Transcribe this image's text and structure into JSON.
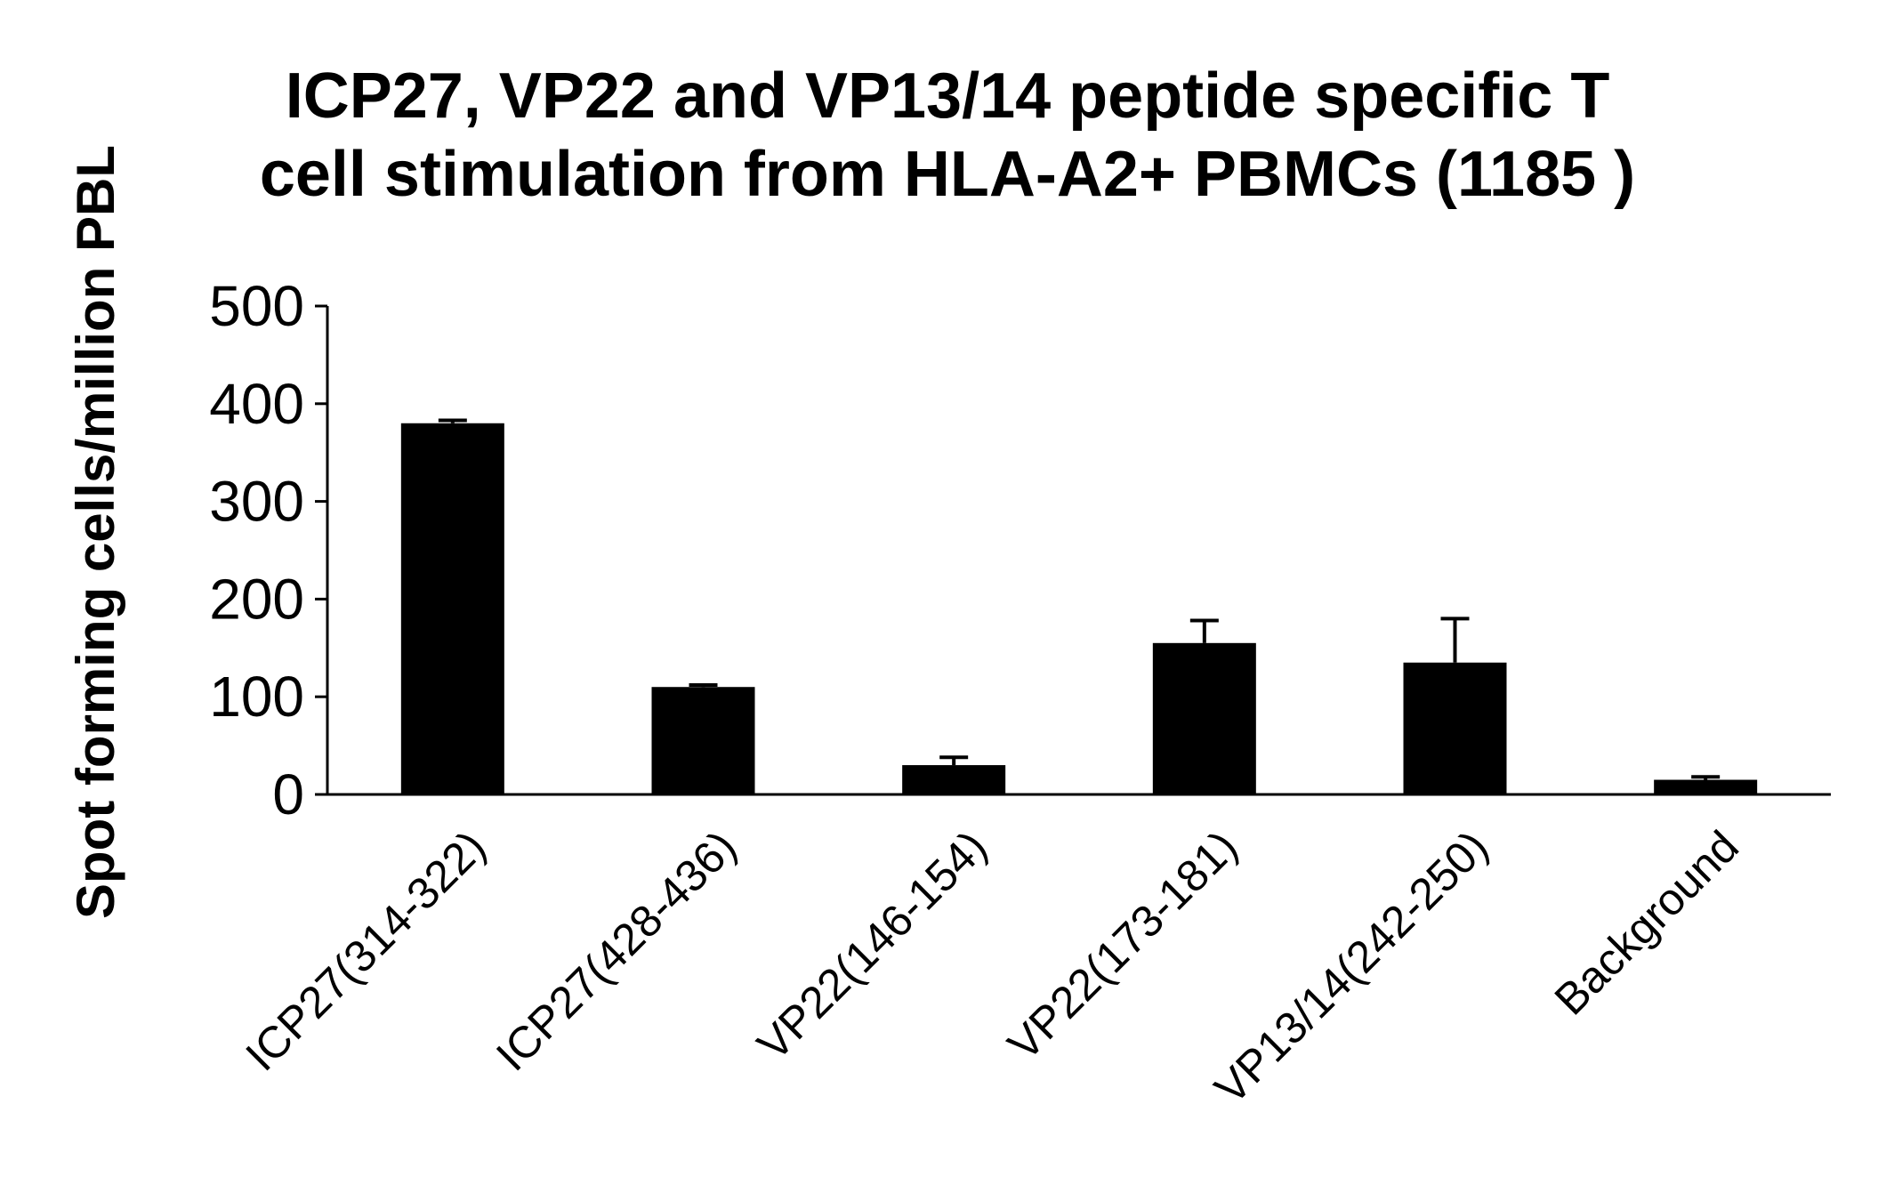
{
  "chart_data": {
    "type": "bar",
    "title": [
      "ICP27, VP22 and VP13/14 peptide specific T",
      "cell stimulation from HLA-A2+ PBMCs (1185 )"
    ],
    "xlabel": "",
    "ylabel": "Spot forming cells/million PBL",
    "ylim": [
      0,
      500
    ],
    "yticks": [
      0,
      100,
      200,
      300,
      400,
      500
    ],
    "yticks_labels": [
      "0",
      "100",
      "200",
      "300",
      "400",
      "500"
    ],
    "categories": [
      "ICP27(314-322)",
      "ICP27(428-436)",
      "VP22(146-154)",
      "VP22(173-181)",
      "VP13/14(242-250)",
      "Background"
    ],
    "values": [
      380,
      110,
      30,
      155,
      135,
      15
    ],
    "errors": [
      3,
      2,
      8,
      23,
      45,
      3
    ],
    "bar_color": "#000000",
    "grid": false,
    "legend": "none"
  }
}
